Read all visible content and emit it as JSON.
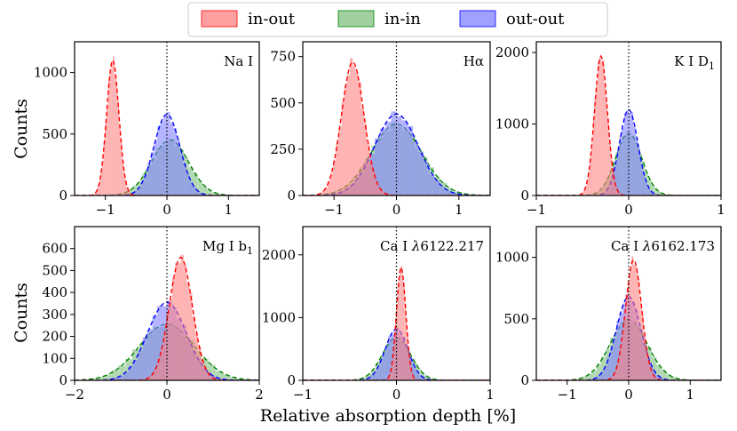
{
  "chart_data": {
    "type": "histogram",
    "xlabel": "Relative absorption depth [%]",
    "ylabel": "Counts",
    "legend": {
      "position": "top-center",
      "entries": [
        {
          "name": "in-out",
          "color": "#ff8080",
          "edge": "#ff0000"
        },
        {
          "name": "in-in",
          "color": "#80c080",
          "edge": "#008000"
        },
        {
          "name": "out-out",
          "color": "#8080ff",
          "edge": "#0000ff"
        }
      ]
    },
    "panels": [
      {
        "label": "Na I",
        "xlim": [
          -1.5,
          1.5
        ],
        "ylim": [
          0,
          1250
        ],
        "xticks": [
          -1,
          0,
          1
        ],
        "xtick_labels": [
          "−1",
          "0",
          "1"
        ],
        "yticks": [
          0,
          500,
          1000
        ],
        "ytick_labels": [
          "0",
          "500",
          "1000"
        ],
        "series": [
          {
            "name": "in-out",
            "mean": -0.88,
            "sigma": 0.1,
            "peak": 1100
          },
          {
            "name": "in-in",
            "mean": 0.05,
            "sigma": 0.3,
            "peak": 450
          },
          {
            "name": "out-out",
            "mean": 0.0,
            "sigma": 0.21,
            "peak": 660
          }
        ]
      },
      {
        "label": "Hα",
        "xlim": [
          -1.5,
          1.5
        ],
        "ylim": [
          0,
          830
        ],
        "xticks": [
          -1,
          0,
          1
        ],
        "xtick_labels": [
          "−1",
          "0",
          "1"
        ],
        "yticks": [
          0,
          250,
          500,
          750
        ],
        "ytick_labels": [
          "0",
          "250",
          "500",
          "750"
        ],
        "series": [
          {
            "name": "in-out",
            "mean": -0.7,
            "sigma": 0.18,
            "peak": 720
          },
          {
            "name": "in-in",
            "mean": 0.0,
            "sigma": 0.4,
            "peak": 385
          },
          {
            "name": "out-out",
            "mean": 0.0,
            "sigma": 0.35,
            "peak": 440
          }
        ]
      },
      {
        "label": "K I D1",
        "label_main": "K I D",
        "label_sub": "1",
        "xlim": [
          -1,
          1
        ],
        "ylim": [
          0,
          2150
        ],
        "xticks": [
          -1,
          0,
          1
        ],
        "xtick_labels": [
          "−1",
          "0",
          "1"
        ],
        "yticks": [
          0,
          1000,
          2000
        ],
        "ytick_labels": [
          "0",
          "1000",
          "2000"
        ],
        "series": [
          {
            "name": "in-out",
            "mean": -0.3,
            "sigma": 0.07,
            "peak": 1950
          },
          {
            "name": "in-in",
            "mean": 0.0,
            "sigma": 0.14,
            "peak": 870
          },
          {
            "name": "out-out",
            "mean": 0.0,
            "sigma": 0.1,
            "peak": 1200
          }
        ]
      },
      {
        "label": "Mg I b1",
        "label_main": "Mg I b",
        "label_sub": "1",
        "xlim": [
          -2,
          2
        ],
        "ylim": [
          0,
          700
        ],
        "xticks": [
          -2,
          0,
          2
        ],
        "xtick_labels": [
          "−2",
          "0",
          "2"
        ],
        "yticks": [
          0,
          100,
          200,
          300,
          400,
          500,
          600
        ],
        "ytick_labels": [
          "0",
          "100",
          "200",
          "300",
          "400",
          "500",
          "600"
        ],
        "series": [
          {
            "name": "in-out",
            "mean": 0.3,
            "sigma": 0.25,
            "peak": 560
          },
          {
            "name": "in-in",
            "mean": 0.0,
            "sigma": 0.6,
            "peak": 255
          },
          {
            "name": "out-out",
            "mean": 0.0,
            "sigma": 0.42,
            "peak": 355
          }
        ]
      },
      {
        "label": "Ca I λ6122.217",
        "label_main": "Ca I ",
        "label_lambda": "λ",
        "label_rest": "6122.217",
        "xlim": [
          -1,
          1
        ],
        "ylim": [
          0,
          2450
        ],
        "xticks": [
          -1,
          0,
          1
        ],
        "xtick_labels": [
          "−1",
          "0",
          "1"
        ],
        "yticks": [
          0,
          1000,
          2000
        ],
        "ytick_labels": [
          "0",
          "1000",
          "2000"
        ],
        "series": [
          {
            "name": "in-out",
            "mean": 0.05,
            "sigma": 0.05,
            "peak": 1800
          },
          {
            "name": "in-in",
            "mean": 0.0,
            "sigma": 0.15,
            "peak": 680
          },
          {
            "name": "out-out",
            "mean": 0.0,
            "sigma": 0.12,
            "peak": 820
          }
        ]
      },
      {
        "label": "Ca I λ6162.173",
        "label_main": "Ca I ",
        "label_lambda": "λ",
        "label_rest": "6162.173",
        "xlim": [
          -1.5,
          1.5
        ],
        "ylim": [
          0,
          1250
        ],
        "xticks": [
          -1,
          0,
          1
        ],
        "xtick_labels": [
          "−1",
          "0",
          "1"
        ],
        "yticks": [
          0,
          500,
          1000
        ],
        "ytick_labels": [
          "0",
          "500",
          "1000"
        ],
        "series": [
          {
            "name": "in-out",
            "mean": 0.08,
            "sigma": 0.13,
            "peak": 980
          },
          {
            "name": "in-in",
            "mean": 0.0,
            "sigma": 0.3,
            "peak": 490
          },
          {
            "name": "out-out",
            "mean": 0.0,
            "sigma": 0.2,
            "peak": 680
          }
        ]
      }
    ]
  }
}
